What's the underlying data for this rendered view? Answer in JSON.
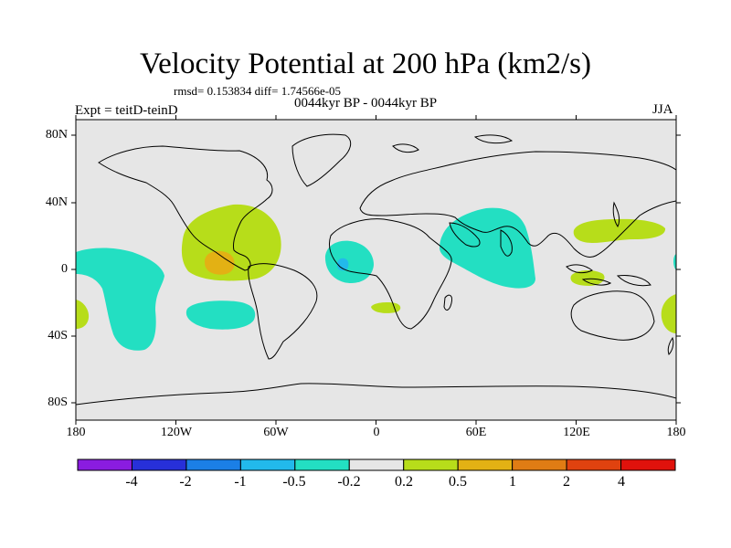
{
  "title": "Velocity Potential at 200 hPa (km2/s)",
  "stats": "rmsd= 0.153834 diff= 1.74566e-05",
  "experiment": "Expt = teitD-teinD",
  "period": "0044kyr BP - 0044kyr BP",
  "season": "JJA",
  "lat_labels": [
    "80N",
    "40N",
    "0",
    "40S",
    "80S"
  ],
  "lon_labels": [
    "180",
    "120W",
    "60W",
    "0",
    "60E",
    "120E",
    "180"
  ],
  "colorbar": {
    "labels": [
      "-4",
      "-2",
      "-1",
      "-0.5",
      "-0.2",
      "0.2",
      "0.5",
      "1",
      "2",
      "4"
    ],
    "colors": [
      "#8a1ce0",
      "#2730d9",
      "#1b7fe6",
      "#22b9eb",
      "#23dfc2",
      "#e6e6e6",
      "#b7dd1a",
      "#e3b114",
      "#e07c14",
      "#e0420f",
      "#e0120c"
    ]
  },
  "anomaly_colors": {
    "neutral": "#e6e6e6",
    "minus_0_2": "#23dfc2",
    "minus_0_5": "#22b9eb",
    "plus_0_2": "#b7dd1a",
    "plus_0_5": "#e3b114"
  }
}
